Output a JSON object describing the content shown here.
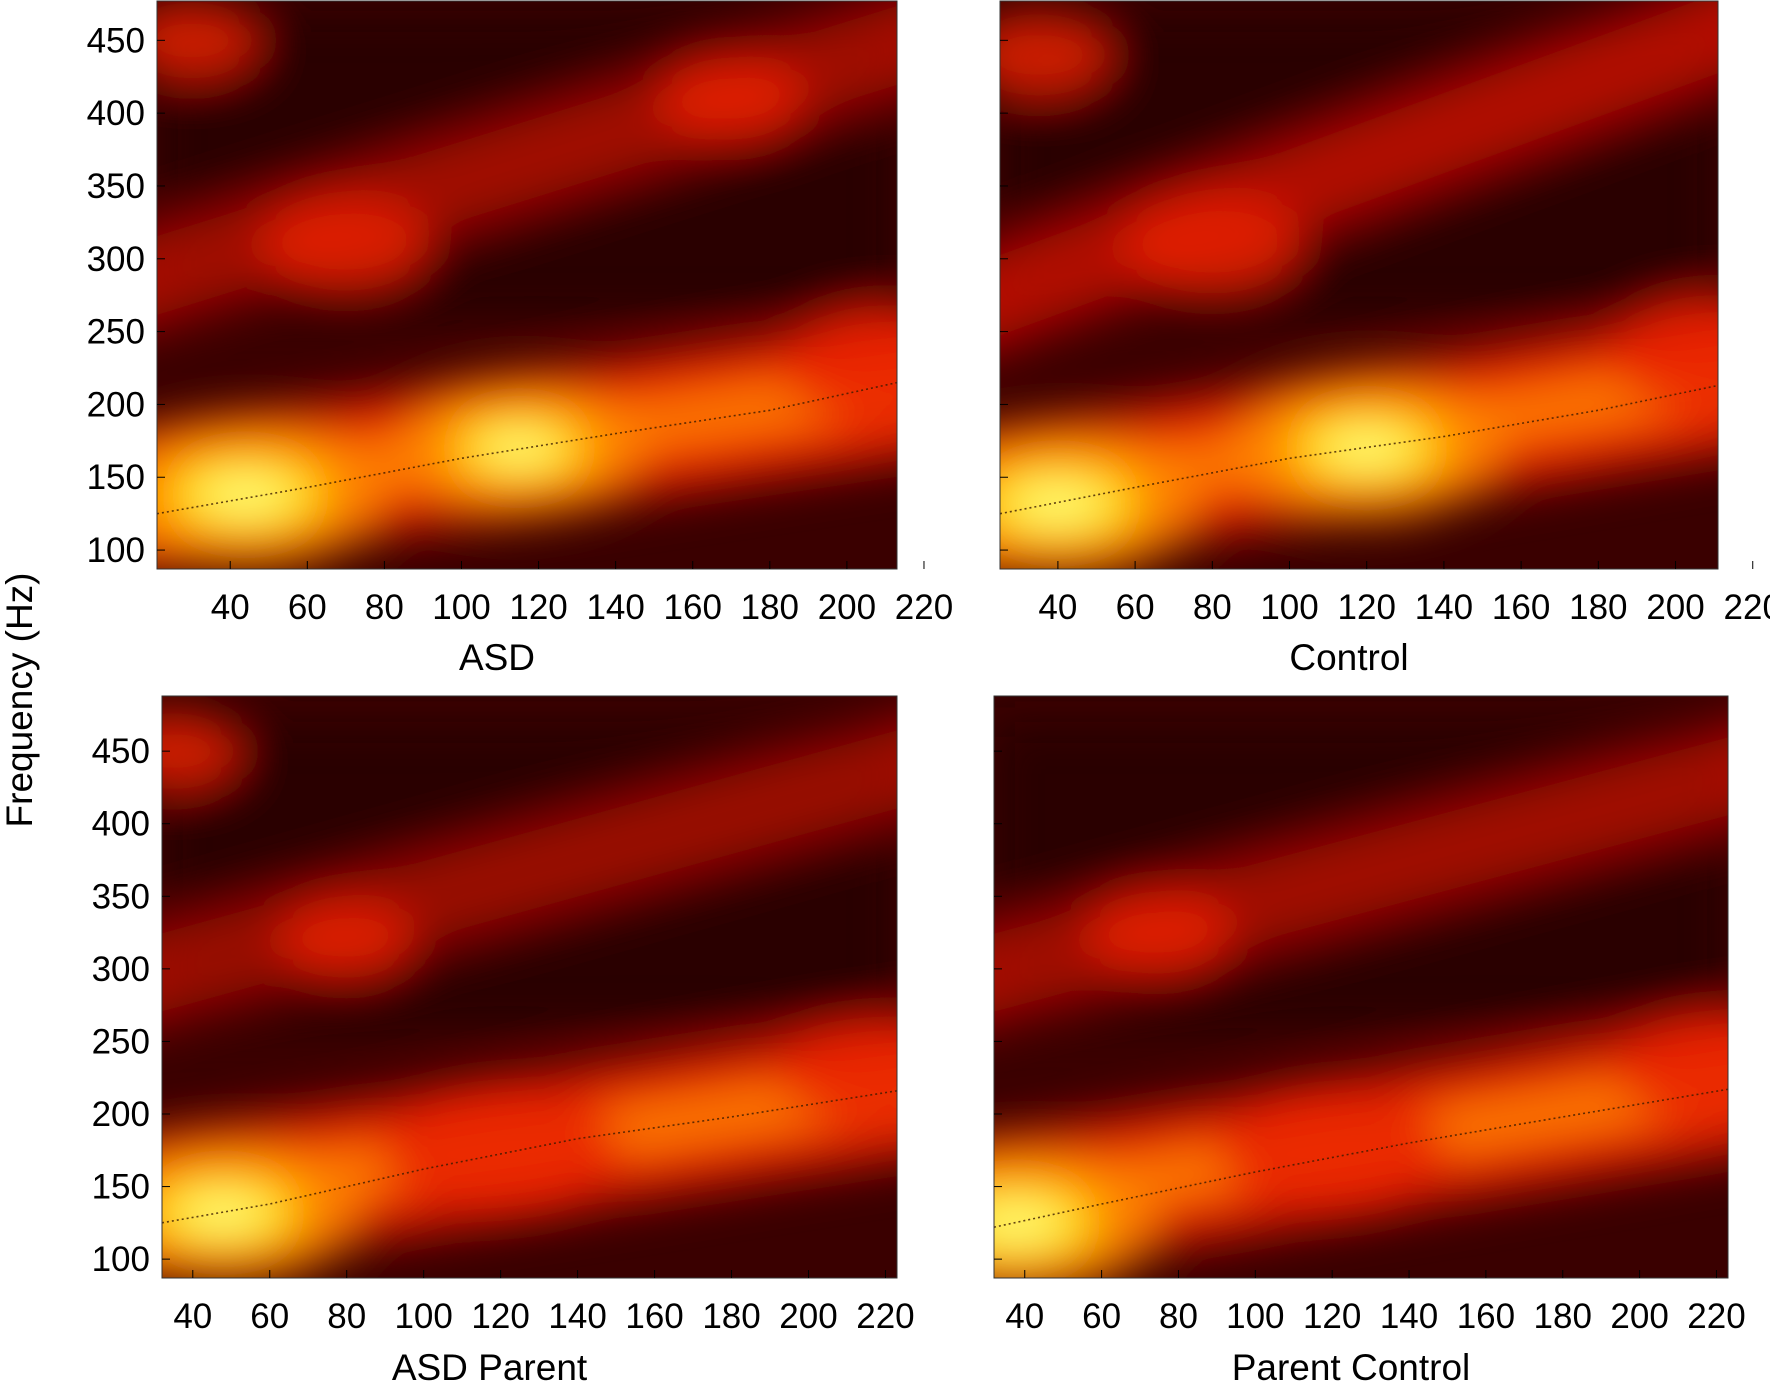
{
  "chart_data": {
    "type": "heatmap",
    "colormap": [
      "#1f0000",
      "#550000",
      "#a00a00",
      "#e51a00",
      "#ff5a00",
      "#ffc000",
      "#ffff90"
    ],
    "shared_ylabel": "Frequency (Hz)",
    "panels": [
      {
        "title": "ASD",
        "xticks": [
          40,
          60,
          80,
          100,
          120,
          140,
          160,
          180,
          200,
          220
        ],
        "yticks": [
          100,
          150,
          200,
          250,
          300,
          350,
          400,
          450
        ],
        "xlim": [
          21,
          213
        ],
        "ylim": [
          87,
          477
        ],
        "f0_line": [
          [
            21,
            125
          ],
          [
            60,
            143
          ],
          [
            100,
            163
          ],
          [
            140,
            180
          ],
          [
            180,
            196
          ],
          [
            213,
            215
          ]
        ],
        "bands": [
          {
            "name_hint": "f0",
            "start": 132,
            "end": 215,
            "intensity": 1.0
          },
          {
            "name_hint": "h2",
            "start": 280,
            "end": 455,
            "intensity": 0.55
          }
        ],
        "hotspots": [
          [
            44,
            138,
            1.0
          ],
          [
            115,
            170,
            0.85
          ],
          [
            210,
            228,
            0.7
          ],
          [
            70,
            310,
            0.5
          ],
          [
            170,
            410,
            0.4
          ],
          [
            30,
            450,
            0.35
          ]
        ]
      },
      {
        "title": "Control",
        "xticks": [
          40,
          60,
          80,
          100,
          120,
          140,
          160,
          180,
          200,
          220
        ],
        "yticks": [
          100,
          150,
          200,
          250,
          300,
          350,
          400,
          450
        ],
        "xlim": [
          25,
          211
        ],
        "ylim": [
          87,
          477
        ],
        "f0_line": [
          [
            25,
            125
          ],
          [
            60,
            143
          ],
          [
            100,
            163
          ],
          [
            140,
            178
          ],
          [
            180,
            196
          ],
          [
            211,
            213
          ]
        ],
        "bands": [
          {
            "name_hint": "f0",
            "start": 130,
            "end": 220,
            "intensity": 1.0
          },
          {
            "name_hint": "h2",
            "start": 265,
            "end": 465,
            "intensity": 0.65
          }
        ],
        "hotspots": [
          [
            40,
            132,
            1.0
          ],
          [
            120,
            170,
            0.95
          ],
          [
            210,
            235,
            0.7
          ],
          [
            80,
            310,
            0.55
          ],
          [
            35,
            440,
            0.4
          ]
        ]
      },
      {
        "title": "ASD Parent",
        "xticks": [
          40,
          60,
          80,
          100,
          120,
          140,
          160,
          180,
          200,
          220
        ],
        "yticks": [
          100,
          150,
          200,
          250,
          300,
          350,
          400,
          450
        ],
        "xlim": [
          32,
          223
        ],
        "ylim": [
          87,
          488
        ],
        "f0_line": [
          [
            32,
            125
          ],
          [
            60,
            138
          ],
          [
            100,
            162
          ],
          [
            140,
            183
          ],
          [
            180,
            198
          ],
          [
            223,
            216
          ]
        ],
        "bands": [
          {
            "name_hint": "f0",
            "start": 135,
            "end": 222,
            "intensity": 0.95
          },
          {
            "name_hint": "h2",
            "start": 290,
            "end": 445,
            "intensity": 0.5
          }
        ],
        "hotspots": [
          [
            48,
            132,
            0.95
          ],
          [
            120,
            175,
            0.8
          ],
          [
            215,
            230,
            0.55
          ],
          [
            80,
            320,
            0.35
          ],
          [
            35,
            450,
            0.35
          ]
        ]
      },
      {
        "title": "Parent  Control",
        "xticks": [
          40,
          60,
          80,
          100,
          120,
          140,
          160,
          180,
          200,
          220
        ],
        "yticks": [
          100,
          150,
          200,
          250,
          300,
          350,
          400,
          450
        ],
        "xlim": [
          32,
          223
        ],
        "ylim": [
          87,
          488
        ],
        "f0_line": [
          [
            32,
            122
          ],
          [
            60,
            138
          ],
          [
            100,
            160
          ],
          [
            140,
            180
          ],
          [
            180,
            198
          ],
          [
            223,
            217
          ]
        ],
        "bands": [
          {
            "name_hint": "f0",
            "start": 132,
            "end": 225,
            "intensity": 0.95
          },
          {
            "name_hint": "h2",
            "start": 290,
            "end": 440,
            "intensity": 0.55
          }
        ],
        "hotspots": [
          [
            38,
            125,
            1.0
          ],
          [
            120,
            175,
            0.75
          ],
          [
            220,
            232,
            0.65
          ],
          [
            75,
            325,
            0.4
          ]
        ]
      }
    ]
  }
}
